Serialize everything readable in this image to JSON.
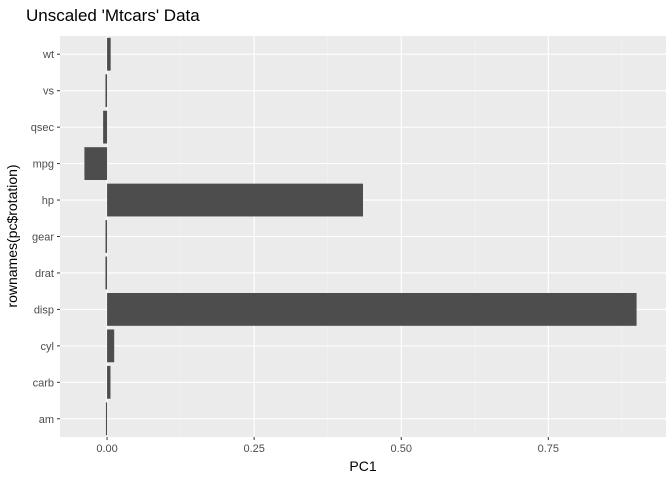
{
  "chart_data": {
    "type": "bar",
    "orientation": "horizontal",
    "title": "Unscaled 'Mtcars' Data",
    "xlabel": "PC1",
    "ylabel": "rownames(pc$rotation)",
    "categories": [
      "am",
      "carb",
      "cyl",
      "disp",
      "drat",
      "gear",
      "hp",
      "mpg",
      "qsec",
      "vs",
      "wt"
    ],
    "values": [
      -0.0019,
      0.0058,
      0.0121,
      0.9,
      -0.0027,
      -0.0026,
      0.435,
      -0.0385,
      -0.0067,
      -0.0027,
      0.0061
    ],
    "xlim": [
      -0.08,
      0.95
    ],
    "xticks": [
      0.0,
      0.25,
      0.5,
      0.75
    ],
    "xtick_labels": [
      "0.00",
      "0.25",
      "0.50",
      "0.75"
    ],
    "grid": true,
    "colors": {
      "panel": "#ebebeb",
      "bar": "#4d4d4d"
    }
  }
}
